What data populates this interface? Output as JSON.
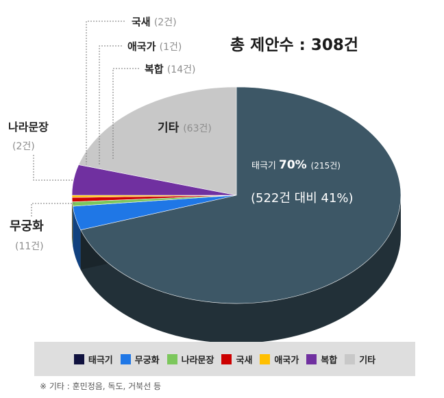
{
  "chart_data": {
    "type": "pie",
    "title": "총 제안수 : 308건",
    "slices": [
      {
        "label": "태극기",
        "value": 215,
        "color": "#3d5766",
        "display": "(215건)",
        "percent": "70%"
      },
      {
        "label": "무궁화",
        "value": 11,
        "color": "#1f77e6",
        "display": "(11건)"
      },
      {
        "label": "나라문장",
        "value": 2,
        "color": "#7cc75c",
        "display": "(2건)"
      },
      {
        "label": "국새",
        "value": 2,
        "color": "#cc0000",
        "display": "(2건)"
      },
      {
        "label": "애국가",
        "value": 1,
        "color": "#ffbf00",
        "display": "(1건)"
      },
      {
        "label": "복합",
        "value": 14,
        "color": "#7030a0",
        "display": "(14건)"
      },
      {
        "label": "기타",
        "value": 63,
        "color": "#c8c8c8",
        "display": "(63건)"
      }
    ],
    "annotation": "(522건 대비 41%)",
    "legend": [
      {
        "label": "태극기",
        "color": "#10123f"
      },
      {
        "label": "무궁화",
        "color": "#1f77e6"
      },
      {
        "label": "나라문장",
        "color": "#7cc75c"
      },
      {
        "label": "국새",
        "color": "#cc0000"
      },
      {
        "label": "애국가",
        "color": "#ffbf00"
      },
      {
        "label": "복합",
        "color": "#7030a0"
      },
      {
        "label": "기타",
        "color": "#c8c8c8"
      }
    ],
    "legend_position": "bottom"
  },
  "note": "※ 기타 : 훈민정음, 독도, 거북선 등"
}
